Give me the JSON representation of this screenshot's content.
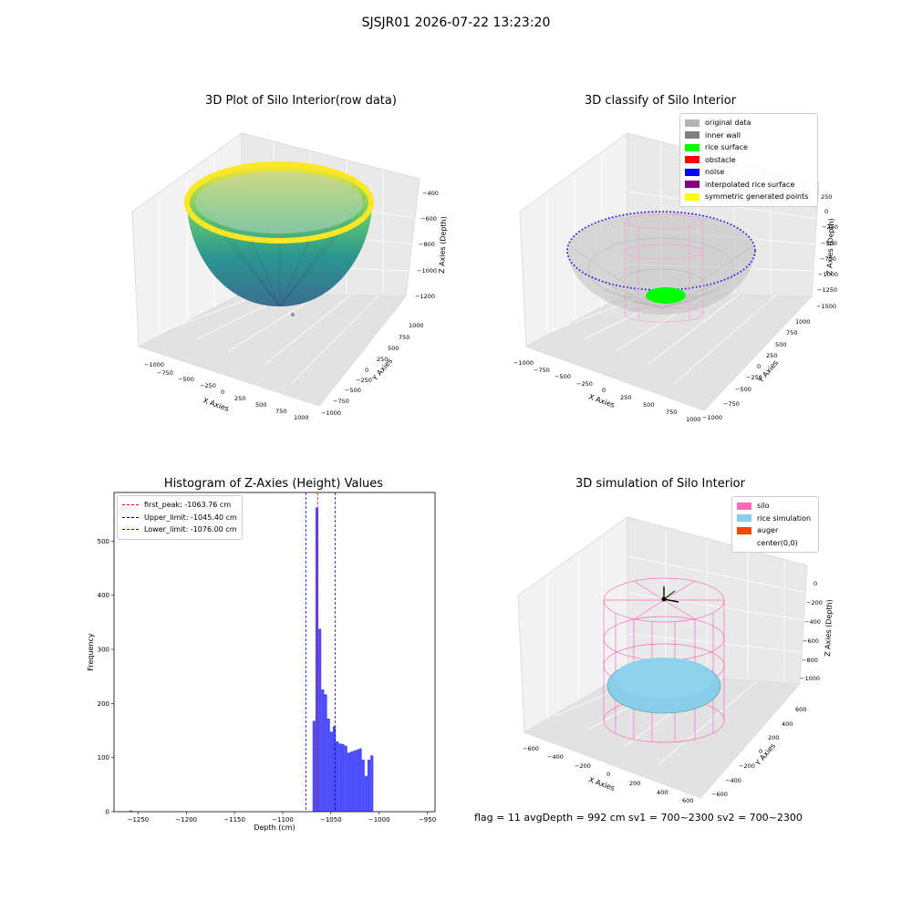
{
  "suptitle": "SJSJR01 2026-07-22 13:23:20",
  "footer": "flag = 11  avgDepth = 992 cm  sv1 = 700~2300  sv2 = 700~2300",
  "plot1": {
    "title": "3D Plot of Silo Interior(row data)",
    "xlabel": "X Axies",
    "ylabel": "Y Axies",
    "zlabel": "Z Axies (Depth)",
    "x_ticks": [
      "−1000",
      "−750",
      "−500",
      "−250",
      "0",
      "250",
      "500",
      "750",
      "1000"
    ],
    "y_ticks": [
      "1000",
      "750",
      "500",
      "250",
      "0",
      "−250",
      "−500",
      "−750",
      "−1000"
    ],
    "z_ticks": [
      "−400",
      "−600",
      "−800",
      "−1000",
      "−1200"
    ]
  },
  "plot2": {
    "title": "3D classify of Silo Interior",
    "xlabel": "X Axies",
    "ylabel": "Y Axies",
    "zlabel": "Z Axies (Depth)",
    "x_ticks": [
      "−1000",
      "−750",
      "−500",
      "−250",
      "0",
      "250",
      "500",
      "750",
      "1000"
    ],
    "y_ticks": [
      "1000",
      "750",
      "500",
      "250",
      "0",
      "−250",
      "−500",
      "−750",
      "−1000"
    ],
    "z_ticks": [
      "250",
      "0",
      "−250",
      "−500",
      "−750",
      "−1000",
      "−1250",
      "−1500"
    ],
    "legend": [
      {
        "label": "original data",
        "color": "#b3b3b3"
      },
      {
        "label": "inner wall",
        "color": "#808080"
      },
      {
        "label": "rice surface",
        "color": "#00ff00"
      },
      {
        "label": "obstacle",
        "color": "#ff0000"
      },
      {
        "label": "noise",
        "color": "#0000ff"
      },
      {
        "label": "interpolated rice surface",
        "color": "#800080"
      },
      {
        "label": "symmetric generated points",
        "color": "#ffff00"
      }
    ]
  },
  "plot4": {
    "title": "3D simulation of Silo Interior",
    "xlabel": "X Axies",
    "ylabel": "Y Axies",
    "zlabel": "Z Axies (Depth)",
    "x_ticks": [
      "−600",
      "−400",
      "−200",
      "0",
      "200",
      "400",
      "600"
    ],
    "y_ticks": [
      "600",
      "400",
      "200",
      "0",
      "−200",
      "−400",
      "−600"
    ],
    "z_ticks": [
      "0",
      "−200",
      "−400",
      "−600",
      "−800",
      "−1000"
    ],
    "legend": [
      {
        "label": "silo",
        "color": "#ff69b4"
      },
      {
        "label": "rice simulation",
        "color": "#87ceeb"
      },
      {
        "label": "auger",
        "color": "#ff4500"
      },
      {
        "label": "center(0,0)",
        "color": "#ffffff"
      }
    ]
  },
  "chart_data": {
    "type": "bar",
    "title": "Histogram of Z-Axies (Height) Values",
    "xlabel": "Depth (cm)",
    "ylabel": "Frequency",
    "xlim": [
      -1275,
      -942
    ],
    "ylim": [
      0,
      590
    ],
    "x_ticks": [
      -1250,
      -1200,
      -1150,
      -1100,
      -1050,
      -1000,
      -950
    ],
    "y_ticks": [
      0,
      100,
      200,
      300,
      400,
      500
    ],
    "bar_color": "#0000ff",
    "bins": [
      {
        "x0": -1259,
        "x1": -1256,
        "value": 2
      },
      {
        "x0": -1069,
        "x1": -1066,
        "value": 168
      },
      {
        "x0": -1066,
        "x1": -1063,
        "value": 562
      },
      {
        "x0": -1063,
        "x1": -1060,
        "value": 338
      },
      {
        "x0": -1060,
        "x1": -1057,
        "value": 226
      },
      {
        "x0": -1057,
        "x1": -1054,
        "value": 217
      },
      {
        "x0": -1054,
        "x1": -1051,
        "value": 172
      },
      {
        "x0": -1051,
        "x1": -1048,
        "value": 148
      },
      {
        "x0": -1048,
        "x1": -1045,
        "value": 158
      },
      {
        "x0": -1045,
        "x1": -1042,
        "value": 130
      },
      {
        "x0": -1042,
        "x1": -1039,
        "value": 126
      },
      {
        "x0": -1039,
        "x1": -1036,
        "value": 125
      },
      {
        "x0": -1036,
        "x1": -1033,
        "value": 122
      },
      {
        "x0": -1033,
        "x1": -1030,
        "value": 109
      },
      {
        "x0": -1030,
        "x1": -1027,
        "value": 111
      },
      {
        "x0": -1027,
        "x1": -1024,
        "value": 113
      },
      {
        "x0": -1024,
        "x1": -1021,
        "value": 115
      },
      {
        "x0": -1021,
        "x1": -1018,
        "value": 117
      },
      {
        "x0": -1018,
        "x1": -1015,
        "value": 96
      },
      {
        "x0": -1015,
        "x1": -1012,
        "value": 66
      },
      {
        "x0": -1012,
        "x1": -1009,
        "value": 96
      },
      {
        "x0": -1009,
        "x1": -1006,
        "value": 104
      }
    ],
    "vlines": [
      {
        "label": "first_peak: -1063.76 cm",
        "x": -1063.76,
        "color": "#ff0000"
      },
      {
        "label": "Upper_limit: -1045.40 cm",
        "x": -1045.4,
        "color": "#00008b"
      },
      {
        "label": "Lower_limit: -1076.00 cm",
        "x": -1076.0,
        "color": "#0000ff"
      }
    ]
  }
}
